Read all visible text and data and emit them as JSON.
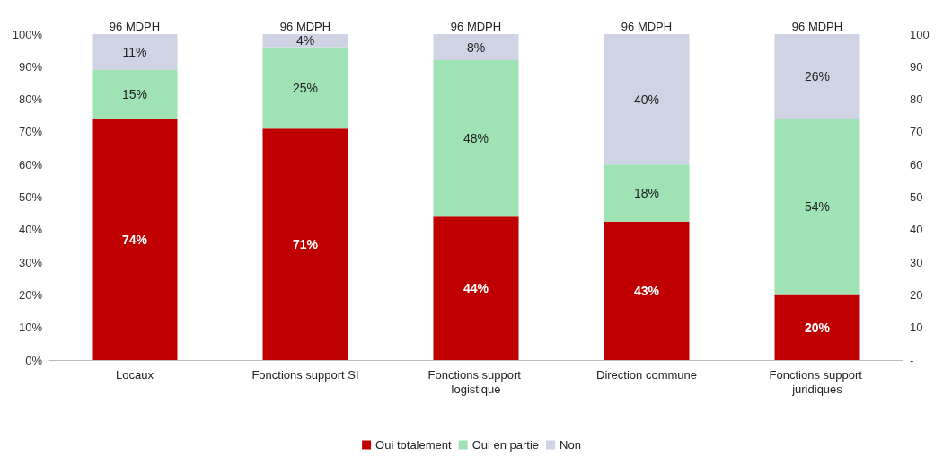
{
  "chart_data": {
    "type": "bar",
    "stacked": true,
    "categories": [
      "Locaux",
      "Fonctions support SI",
      "Fonctions support logistique",
      "Direction commune",
      "Fonctions support juridiques"
    ],
    "series": [
      {
        "name": "Oui totalement",
        "color": "#c00000",
        "values": [
          74,
          71,
          44,
          42.5,
          20
        ],
        "value_labels": [
          "74%",
          "71%",
          "44%",
          "43%",
          "20%"
        ]
      },
      {
        "name": "Oui en partie",
        "color": "#9fe3b4",
        "values": [
          15,
          25,
          48,
          17.5,
          54
        ],
        "value_labels": [
          "15%",
          "25%",
          "48%",
          "18%",
          "54%"
        ]
      },
      {
        "name": "Non",
        "color": "#cfd3e3",
        "values": [
          11,
          4,
          8,
          40,
          26
        ],
        "value_labels": [
          "11%",
          "4%",
          "8%",
          "40%",
          "26%"
        ]
      }
    ],
    "annotations": [
      {
        "text": "96 MDPH",
        "x": "Locaux",
        "y": 100
      },
      {
        "text": "96 MDPH",
        "x": "Fonctions support SI",
        "y": 100
      },
      {
        "text": "96 MDPH",
        "x": "Fonctions support logistique",
        "y": 100
      },
      {
        "text": "96 MDPH",
        "x": "Direction commune",
        "y": 100
      },
      {
        "text": "96 MDPH",
        "x": "Fonctions support juridiques",
        "y": 100
      }
    ],
    "ylim": [
      0,
      100
    ],
    "yticks": [
      {
        "value": 0,
        "label": "0%"
      },
      {
        "value": 10,
        "label": "10%"
      },
      {
        "value": 20,
        "label": "20%"
      },
      {
        "value": 30,
        "label": "30%"
      },
      {
        "value": 40,
        "label": "40%"
      },
      {
        "value": 50,
        "label": "50%"
      },
      {
        "value": 60,
        "label": "60%"
      },
      {
        "value": 70,
        "label": "70%"
      },
      {
        "value": 80,
        "label": "80%"
      },
      {
        "value": 90,
        "label": "90%"
      },
      {
        "value": 100,
        "label": "100%"
      }
    ],
    "y2lim": [
      0,
      100
    ],
    "y2ticks": [
      {
        "value": 0,
        "label": "-"
      },
      10,
      20,
      30,
      40,
      50,
      60,
      70,
      80,
      90,
      100
    ],
    "grid": false,
    "legend": "bottom"
  }
}
